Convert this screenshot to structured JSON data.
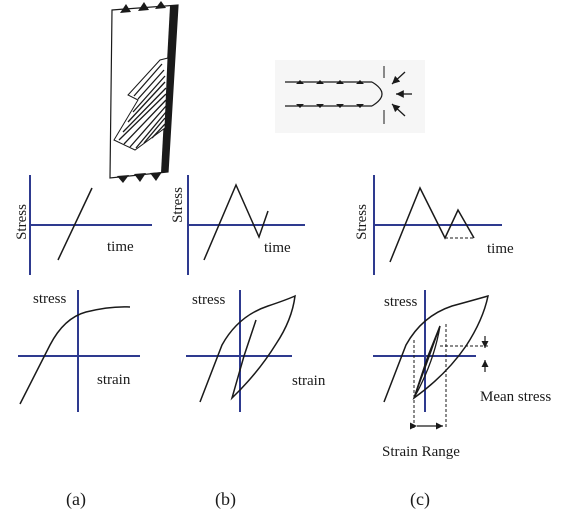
{
  "colors": {
    "axis": "#2e3a8f",
    "curve": "#1a1a1a",
    "background": "#ffffff"
  },
  "icons": [
    "crack-specimen-icon",
    "crack-tip-icon"
  ],
  "panels": {
    "a": {
      "caption": "(a)",
      "time_plot": {
        "y_label": "Stress",
        "x_label": "time"
      },
      "strain_plot": {
        "y_label": "stress",
        "x_label": "strain"
      }
    },
    "b": {
      "caption": "(b)",
      "time_plot": {
        "y_label": "Stress",
        "x_label": "time"
      },
      "strain_plot": {
        "y_label": "stress",
        "x_label": "strain"
      }
    },
    "c": {
      "caption": "(c)",
      "time_plot": {
        "y_label": "Stress",
        "x_label": "time"
      },
      "strain_plot": {
        "y_label": "stress",
        "mean_stress_label": "Mean stress",
        "strain_range_label": "Strain Range"
      }
    }
  }
}
